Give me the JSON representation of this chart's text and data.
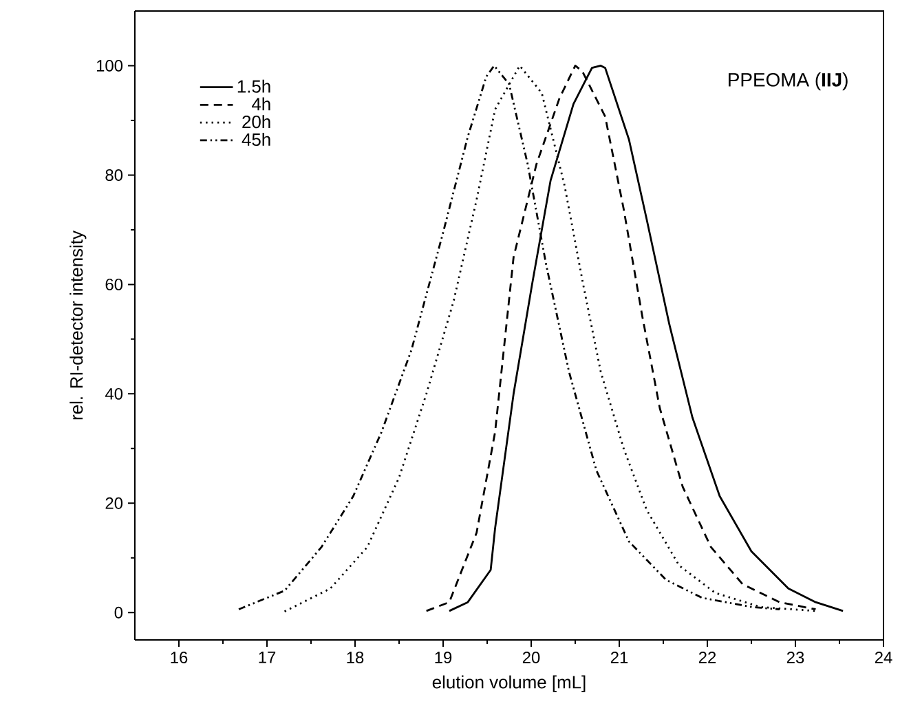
{
  "chart_data": {
    "type": "line",
    "xlabel": "elution volume [mL]",
    "ylabel": "rel. RI-detector intensity",
    "annotations": [
      "PPEOMA (**IIJ**)"
    ],
    "xlim": [
      15.5,
      24
    ],
    "xticks": [
      16,
      17,
      18,
      19,
      20,
      21,
      22,
      23,
      24
    ],
    "ylim": [
      -5,
      110
    ],
    "yticks": [
      0,
      20,
      40,
      60,
      80,
      100
    ],
    "grid": false,
    "legend": "top left",
    "series": [
      {
        "name": "1.5h",
        "color": "#000000",
        "line_style": "solid",
        "x": [
          19.07,
          19.28,
          19.54,
          19.59,
          19.8,
          20.01,
          20.22,
          20.48,
          20.69,
          20.79,
          20.84,
          21.11,
          21.31,
          21.57,
          21.83,
          22.14,
          22.5,
          22.92,
          23.23,
          23.54
        ],
        "values": [
          0.3,
          1.9,
          7.8,
          15.4,
          40,
          60,
          79,
          93,
          99.6,
          100,
          99.6,
          86.5,
          72,
          52.6,
          35.7,
          21.3,
          11.2,
          4.4,
          1.9,
          0.3
        ]
      },
      {
        "name": "4h",
        "color": "#000000",
        "line_style": "dashed",
        "x": [
          18.81,
          19.07,
          19.38,
          19.59,
          19.8,
          20.06,
          20.32,
          20.5,
          20.58,
          20.84,
          21.05,
          21.26,
          21.46,
          21.72,
          22.04,
          22.4,
          22.82,
          23.23
        ],
        "values": [
          0.3,
          1.9,
          14.6,
          33,
          65,
          82,
          94,
          100,
          99,
          90.7,
          73.8,
          54.3,
          37.4,
          23,
          12,
          5.2,
          1.9,
          0.6
        ]
      },
      {
        "name": "20h",
        "color": "#000000",
        "line_style": "dotted",
        "x": [
          17.2,
          17.72,
          18.14,
          18.5,
          18.81,
          19.12,
          19.38,
          19.59,
          19.87,
          20.12,
          20.38,
          20.59,
          20.79,
          21.05,
          21.31,
          21.68,
          22.09,
          22.61,
          23.23
        ],
        "values": [
          0.2,
          4.4,
          12,
          24.7,
          40,
          57,
          75.5,
          92,
          100,
          95,
          78,
          60,
          44,
          30,
          18.8,
          8.6,
          3.6,
          1,
          0.3
        ]
      },
      {
        "name": "45h",
        "color": "#000000",
        "line_style": "dashdot",
        "x": [
          16.68,
          17.2,
          17.62,
          17.98,
          18.3,
          18.64,
          19.0,
          19.28,
          19.49,
          19.58,
          19.75,
          19.96,
          20.17,
          20.43,
          20.74,
          21.11,
          21.53,
          21.94,
          22.51,
          22.82
        ],
        "values": [
          0.6,
          4,
          12,
          21.3,
          33,
          48,
          69.5,
          87,
          98,
          100,
          96.6,
          82,
          63.6,
          44,
          26,
          13,
          6,
          2.7,
          1,
          0.6
        ]
      }
    ]
  }
}
